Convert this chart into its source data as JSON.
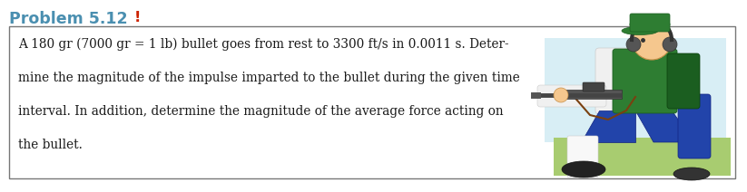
{
  "title": "Problem 5.12",
  "title_color": "#4a8fb0",
  "exclamation_color": "#cc2200",
  "exclamation": "!",
  "body_lines": [
    "A 180 gr (7000 gr = 1 lb) bullet goes from rest to 3300 ft/s in 0.0011 s. Deter-",
    "mine the magnitude of the impulse imparted to the bullet during the given time",
    "interval. In addition, determine the magnitude of the average force acting on",
    "the bullet."
  ],
  "text_color": "#1a1a1a",
  "background_color": "#ffffff",
  "box_edge_color": "#777777",
  "fig_width": 8.23,
  "fig_height": 2.12,
  "title_fontsize": 12.5,
  "body_fontsize": 9.8
}
